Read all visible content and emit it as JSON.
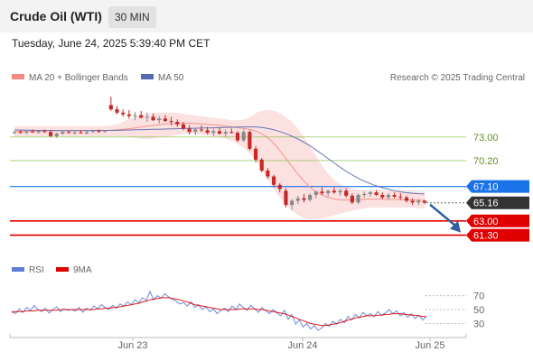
{
  "header": {
    "title": "Crude Oil (WTI)",
    "timeframe": "30 MIN",
    "datetime": "Tuesday, June 24, 2025 5:39:40 PM CET"
  },
  "legend": {
    "ma20": "MA 20 + Bollinger Bands",
    "ma50": "MA 50",
    "rsi": "RSI",
    "rsi_ma": "9MA",
    "credit": "Research © 2025 Trading Central"
  },
  "colors": {
    "up": "#888888",
    "down": "#c62828",
    "ma20": "#f28b82",
    "ma50": "#5568b0",
    "bands": "#fcdcdc",
    "resistance": "#1a73e8",
    "support": "#e00000",
    "green_level": "#8bc34a",
    "last_price": "#333333",
    "rsi": "#5b7fd6",
    "rsi_ma": "#e00000",
    "arrow": "#2f5f9e"
  },
  "chart_data": [
    {
      "type": "candlestick",
      "title": "Crude Oil (WTI)",
      "timeframe": "30 MIN",
      "x_ticks": [
        "Jun 23",
        "Jun 24",
        "Jun 25"
      ],
      "ylim": [
        59.0,
        79.0
      ],
      "levels": [
        {
          "label": "73.00",
          "value": 73.0,
          "kind": "green"
        },
        {
          "label": "70.20",
          "value": 70.2,
          "kind": "green"
        },
        {
          "label": "67.10",
          "value": 67.1,
          "kind": "resistance"
        },
        {
          "label": "65.16",
          "value": 65.16,
          "kind": "last_price"
        },
        {
          "label": "63.00",
          "value": 63.0,
          "kind": "support"
        },
        {
          "label": "61.30",
          "value": 61.3,
          "kind": "support"
        }
      ],
      "forecast": {
        "from": 65.16,
        "to": 61.3
      },
      "series": [
        {
          "name": "MA 20",
          "values": [
            73.65,
            73.68,
            73.7,
            73.72,
            73.73,
            73.74,
            73.75,
            73.75,
            73.76,
            73.76,
            73.77,
            73.77,
            73.78,
            73.78,
            73.79,
            73.8,
            73.85,
            73.92,
            74.0,
            74.1,
            74.22,
            74.33,
            74.42,
            74.5,
            74.56,
            74.6,
            74.62,
            74.63,
            74.62,
            74.58,
            74.52,
            74.45,
            74.38,
            74.3,
            74.2,
            74.1,
            74.0,
            73.85,
            73.6,
            73.2,
            72.6,
            71.8,
            70.8,
            69.8,
            68.8,
            67.9,
            67.1,
            66.5,
            66.1,
            65.8,
            65.6,
            65.5,
            65.5,
            65.52,
            65.55,
            65.58,
            65.6,
            65.6,
            65.58,
            65.56,
            65.54,
            65.52,
            65.5,
            65.48,
            65.45
          ]
        },
        {
          "name": "MA 50",
          "values": [
            73.85,
            73.83,
            73.82,
            73.8,
            73.79,
            73.78,
            73.77,
            73.76,
            73.76,
            73.76,
            73.76,
            73.76,
            73.77,
            73.77,
            73.78,
            73.79,
            73.8,
            73.82,
            73.84,
            73.86,
            73.88,
            73.9,
            73.92,
            73.94,
            73.96,
            73.98,
            74.0,
            74.02,
            74.04,
            74.06,
            74.08,
            74.1,
            74.12,
            74.14,
            74.16,
            74.18,
            74.2,
            74.2,
            74.18,
            74.1,
            73.95,
            73.75,
            73.5,
            73.2,
            72.85,
            72.45,
            72.0,
            71.5,
            70.95,
            70.4,
            69.85,
            69.3,
            68.8,
            68.35,
            67.95,
            67.6,
            67.3,
            67.05,
            66.85,
            66.65,
            66.5,
            66.38,
            66.3,
            66.25,
            66.22
          ]
        },
        {
          "name": "Bollinger upper",
          "values": [
            74.3,
            74.3,
            74.3,
            74.3,
            74.3,
            74.3,
            74.3,
            74.3,
            74.3,
            74.3,
            74.3,
            74.3,
            74.3,
            74.3,
            74.3,
            74.35,
            74.5,
            74.8,
            75.2,
            75.5,
            75.7,
            75.8,
            75.9,
            75.9,
            75.9,
            75.9,
            75.8,
            75.7,
            75.6,
            75.5,
            75.4,
            75.3,
            75.2,
            75.1,
            75.0,
            75.0,
            75.1,
            75.5,
            76.0,
            76.2,
            76.2,
            76.0,
            75.6,
            75.0,
            74.2,
            73.2,
            72.0,
            70.8,
            69.6,
            68.6,
            67.8,
            67.3,
            67.0,
            66.8,
            66.7,
            66.6,
            66.6,
            66.6,
            66.6,
            66.6,
            66.6,
            66.6,
            66.6,
            66.5,
            66.5
          ]
        },
        {
          "name": "Bollinger lower",
          "values": [
            73.1,
            73.1,
            73.1,
            73.1,
            73.1,
            73.1,
            73.1,
            73.1,
            73.1,
            73.1,
            73.1,
            73.1,
            73.1,
            73.1,
            73.1,
            73.1,
            73.1,
            73.1,
            73.0,
            72.9,
            72.8,
            72.8,
            72.9,
            73.0,
            73.1,
            73.2,
            73.3,
            73.4,
            73.4,
            73.3,
            73.2,
            73.1,
            73.0,
            72.8,
            72.5,
            72.1,
            71.6,
            70.8,
            69.8,
            68.6,
            67.4,
            66.2,
            65.2,
            64.4,
            63.8,
            63.4,
            63.2,
            63.2,
            63.3,
            63.5,
            63.7,
            63.9,
            64.1,
            64.3,
            64.4,
            64.5,
            64.6,
            64.6,
            64.6,
            64.6,
            64.6,
            64.6,
            64.6,
            64.5,
            64.5
          ]
        }
      ],
      "candles": [
        [
          73.5,
          73.7,
          73.3,
          73.6
        ],
        [
          73.6,
          73.8,
          73.4,
          73.5
        ],
        [
          73.5,
          73.7,
          73.35,
          73.65
        ],
        [
          73.65,
          73.9,
          73.5,
          73.55
        ],
        [
          73.55,
          73.75,
          73.4,
          73.7
        ],
        [
          73.7,
          73.9,
          73.5,
          73.6
        ],
        [
          73.6,
          73.8,
          73.0,
          73.1
        ],
        [
          73.1,
          73.5,
          72.9,
          73.4
        ],
        [
          73.4,
          73.7,
          73.3,
          73.6
        ],
        [
          73.6,
          73.75,
          73.4,
          73.5
        ],
        [
          73.5,
          73.7,
          73.3,
          73.55
        ],
        [
          73.55,
          73.8,
          73.4,
          73.45
        ],
        [
          73.45,
          73.7,
          73.3,
          73.6
        ],
        [
          73.6,
          73.8,
          73.5,
          73.7
        ],
        [
          73.7,
          73.9,
          73.55,
          73.65
        ],
        [
          73.65,
          73.85,
          73.5,
          73.75
        ],
        [
          76.8,
          77.8,
          76.1,
          76.3
        ],
        [
          76.3,
          76.7,
          75.7,
          75.9
        ],
        [
          75.9,
          76.3,
          75.4,
          75.7
        ],
        [
          75.7,
          76.2,
          75.2,
          75.5
        ],
        [
          75.5,
          76.0,
          75.0,
          75.6
        ],
        [
          75.6,
          76.1,
          75.2,
          75.3
        ],
        [
          75.3,
          75.9,
          74.8,
          75.4
        ],
        [
          75.4,
          75.8,
          74.9,
          75.0
        ],
        [
          75.0,
          75.5,
          74.6,
          75.2
        ],
        [
          75.2,
          75.6,
          74.8,
          74.9
        ],
        [
          74.9,
          75.4,
          74.4,
          74.8
        ],
        [
          74.8,
          75.1,
          74.2,
          74.5
        ],
        [
          74.5,
          74.8,
          73.8,
          74.0
        ],
        [
          74.0,
          74.4,
          73.3,
          73.6
        ],
        [
          73.6,
          74.1,
          73.2,
          73.9
        ],
        [
          73.9,
          74.4,
          73.6,
          73.8
        ],
        [
          73.8,
          74.2,
          73.3,
          73.5
        ],
        [
          73.5,
          74.0,
          73.1,
          73.7
        ],
        [
          73.7,
          74.1,
          73.3,
          73.4
        ],
        [
          73.4,
          73.9,
          73.0,
          73.6
        ],
        [
          73.6,
          74.0,
          73.4,
          73.5
        ],
        [
          73.5,
          73.7,
          72.4,
          72.6
        ],
        [
          72.6,
          73.9,
          72.4,
          73.6
        ],
        [
          73.6,
          73.8,
          71.4,
          71.6
        ],
        [
          71.6,
          71.9,
          70.0,
          70.3
        ],
        [
          70.3,
          70.5,
          68.8,
          69.0
        ],
        [
          69.0,
          69.3,
          68.0,
          68.3
        ],
        [
          68.3,
          68.5,
          67.0,
          67.3
        ],
        [
          67.3,
          67.5,
          66.4,
          66.8
        ],
        [
          66.6,
          66.9,
          64.6,
          64.9
        ],
        [
          64.9,
          65.6,
          64.3,
          65.4
        ],
        [
          65.4,
          66.0,
          65.0,
          65.7
        ],
        [
          65.7,
          66.2,
          65.2,
          65.5
        ],
        [
          65.5,
          66.3,
          65.3,
          66.1
        ],
        [
          66.1,
          66.6,
          65.7,
          66.5
        ],
        [
          66.5,
          67.0,
          66.1,
          66.3
        ],
        [
          66.3,
          66.7,
          65.9,
          66.6
        ],
        [
          66.6,
          67.0,
          66.2,
          66.4
        ],
        [
          66.4,
          66.8,
          66.0,
          66.6
        ],
        [
          66.6,
          66.9,
          65.8,
          66.0
        ],
        [
          66.0,
          66.3,
          65.0,
          65.2
        ],
        [
          65.2,
          66.3,
          65.0,
          66.1
        ],
        [
          66.1,
          66.5,
          65.8,
          66.2
        ],
        [
          66.2,
          66.6,
          65.9,
          66.4
        ],
        [
          66.4,
          66.7,
          66.0,
          66.1
        ],
        [
          66.1,
          66.4,
          65.6,
          65.8
        ],
        [
          65.8,
          66.3,
          65.5,
          66.1
        ],
        [
          66.1,
          66.4,
          65.7,
          65.9
        ],
        [
          65.9,
          66.3,
          65.5,
          65.8
        ],
        [
          65.8,
          66.0,
          65.2,
          65.4
        ],
        [
          65.4,
          65.7,
          64.9,
          65.2
        ],
        [
          65.2,
          65.6,
          64.9,
          65.4
        ],
        [
          65.4,
          65.5,
          65.0,
          65.16
        ]
      ]
    },
    {
      "type": "line",
      "title": "RSI",
      "y_ticks": [
        70,
        50,
        30
      ],
      "ylim": [
        15,
        85
      ],
      "series": [
        {
          "name": "RSI",
          "values": [
            48,
            44,
            51,
            46,
            53,
            49,
            56,
            50,
            47,
            52,
            45,
            50,
            54,
            47,
            51,
            49,
            50,
            48,
            53,
            46,
            52,
            49,
            55,
            51,
            57,
            53,
            50,
            56,
            52,
            58,
            55,
            61,
            57,
            64,
            60,
            67,
            63,
            76,
            64,
            70,
            66,
            73,
            68,
            65,
            62,
            58,
            60,
            55,
            61,
            53,
            57,
            50,
            54,
            47,
            51,
            44,
            49,
            52,
            47,
            55,
            50,
            58,
            53,
            49,
            56,
            51,
            46,
            53,
            48,
            44,
            50,
            45,
            41,
            49,
            36,
            43,
            29,
            35,
            25,
            30,
            22,
            27,
            20,
            24,
            30,
            26,
            33,
            29,
            36,
            31,
            40,
            35,
            43,
            38,
            46,
            41,
            44,
            40,
            47,
            42,
            45,
            50,
            44,
            48,
            41,
            46,
            39,
            44,
            37,
            42,
            35,
            40
          ]
        },
        {
          "name": "9MA",
          "values": [
            46,
            47,
            47,
            47,
            48,
            48,
            48,
            49,
            49,
            49,
            49,
            49,
            49,
            50,
            50,
            50,
            50,
            50,
            50,
            50,
            50,
            50,
            50,
            51,
            51,
            52,
            52,
            53,
            53,
            54,
            55,
            56,
            57,
            58,
            59,
            61,
            62,
            64,
            65,
            66,
            67,
            67,
            67,
            66,
            65,
            64,
            62,
            61,
            59,
            57,
            56,
            55,
            54,
            53,
            52,
            51,
            50,
            50,
            50,
            50,
            50,
            51,
            51,
            51,
            51,
            51,
            50,
            50,
            49,
            48,
            47,
            46,
            45,
            44,
            42,
            40,
            38,
            36,
            34,
            32,
            30,
            29,
            28,
            27,
            27,
            28,
            29,
            30,
            31,
            33,
            35,
            36,
            38,
            39,
            40,
            41,
            41,
            41,
            42,
            42,
            43,
            43,
            44,
            44,
            44,
            43,
            43,
            42,
            42,
            41,
            40,
            40
          ]
        }
      ]
    }
  ]
}
